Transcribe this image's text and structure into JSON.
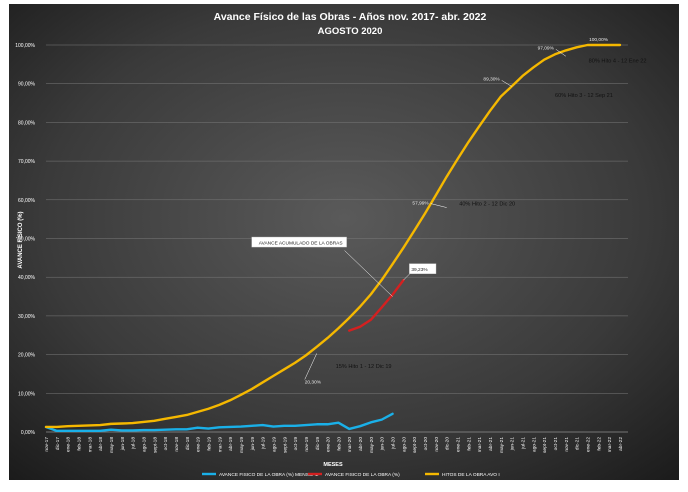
{
  "chart_data": {
    "type": "line",
    "title": "Avance Físico de las Obras - Años nov. 2017- abr. 2022",
    "subtitle": "AGOSTO 2020",
    "xlabel": "MESES",
    "ylabel": "AVANCE FÍSICO (%)",
    "ylim": [
      0,
      100
    ],
    "yticks": [
      "0,00%",
      "10,00%",
      "20,00%",
      "30,00%",
      "40,00%",
      "50,00%",
      "60,00%",
      "70,00%",
      "80,00%",
      "90,00%",
      "100,00%"
    ],
    "grid": true,
    "legend": "bottom",
    "categories": [
      "nov-17",
      "dic-17",
      "ene-18",
      "feb-18",
      "mar-18",
      "abr-18",
      "may-18",
      "jun-18",
      "jul-18",
      "ago-18",
      "sept-18",
      "oct-18",
      "nov-18",
      "dic-18",
      "ene-19",
      "feb-19",
      "mar-19",
      "abr-19",
      "may-19",
      "jun-19",
      "jul-19",
      "ago-19",
      "sept-19",
      "oct-19",
      "nov-19",
      "dic-19",
      "ene-20",
      "feb-20",
      "mar-20",
      "abr-20",
      "may-20",
      "jun-20",
      "jul-20",
      "ago-20",
      "sept-20",
      "oct-20",
      "nov-20",
      "dic-20",
      "ene-21",
      "feb-21",
      "mar-21",
      "abr-21",
      "may-21",
      "jun-21",
      "jul-21",
      "ago-21",
      "sept-21",
      "oct-21",
      "nov-21",
      "dic-21",
      "ene-22",
      "feb-22",
      "mar-22",
      "abr-22"
    ],
    "series": [
      {
        "name": "AVANCE FISICO DE LA OBRA (%) MENSUAL",
        "color": "#1ab0e8",
        "values": [
          1.3,
          0.3,
          0.3,
          0.3,
          0.3,
          0.3,
          0.6,
          0.4,
          0.4,
          0.5,
          0.5,
          0.6,
          0.7,
          0.7,
          1.1,
          0.9,
          1.2,
          1.3,
          1.4,
          1.6,
          1.8,
          1.4,
          1.6,
          1.6,
          1.8,
          2.0,
          2.0,
          2.4,
          0.8,
          1.5,
          2.5,
          3.2,
          4.7,
          null,
          null,
          null,
          null,
          null,
          null,
          null,
          null,
          null,
          null,
          null,
          null,
          null,
          null,
          null,
          null,
          null,
          null,
          null,
          null,
          null
        ]
      },
      {
        "name": "AVANCE FISICO DE LA OBRA (%)",
        "color": "#d42020",
        "values": [
          null,
          null,
          null,
          null,
          null,
          null,
          null,
          null,
          null,
          null,
          null,
          null,
          null,
          null,
          null,
          null,
          null,
          null,
          null,
          null,
          null,
          null,
          null,
          null,
          null,
          null,
          null,
          null,
          26.2,
          27.2,
          29.0,
          32.2,
          35.5,
          39.23,
          null,
          null,
          null,
          null,
          null,
          null,
          null,
          null,
          null,
          null,
          null,
          null,
          null,
          null,
          null,
          null,
          null,
          null,
          null,
          null
        ]
      },
      {
        "name": "HITOS DE LA OBRA AVO I",
        "color": "#f5b800",
        "values": [
          1.3,
          1.3,
          1.5,
          1.6,
          1.7,
          1.8,
          2.1,
          2.2,
          2.3,
          2.6,
          2.9,
          3.4,
          3.9,
          4.4,
          5.2,
          6.0,
          7.0,
          8.2,
          9.6,
          11.1,
          12.8,
          14.5,
          16.2,
          17.9,
          19.8,
          22.0,
          24.3,
          26.8,
          29.5,
          32.4,
          35.6,
          39.3,
          43.4,
          47.6,
          52.0,
          56.5,
          61.2,
          66.0,
          70.5,
          74.9,
          79.0,
          83.0,
          86.7,
          89.3,
          92.0,
          94.2,
          96.2,
          97.6,
          98.6,
          99.4,
          100.0,
          100.0,
          100.0,
          100.0
        ]
      }
    ],
    "annotations": [
      {
        "text": "AVANCE ACUMULADO DE LA OBRAS",
        "target_index": 32,
        "target_value": 35.0
      },
      {
        "text": "39,23%",
        "target_index": 33,
        "target_value": 39.23
      },
      {
        "text": "20,30%",
        "target_index": 25,
        "target_value": 20.3
      },
      {
        "text": "57,99%",
        "target_index": 37,
        "target_value": 57.99
      },
      {
        "text": "89,30%",
        "target_index": 43,
        "target_value": 89.3
      },
      {
        "text": "97,09%",
        "target_index": 48,
        "target_value": 97.09
      },
      {
        "text": "100,00%",
        "target_index": 53,
        "target_value": 100.0
      }
    ],
    "milestones": [
      {
        "text": "15% Hito 1 - 12 Dic 19",
        "index": 26,
        "value": 16.5
      },
      {
        "text": "40% Hito 2 - 12 Dic 20",
        "index": 40,
        "value": 58.5
      },
      {
        "text": "60% Hito 3 - 12 Sep 21",
        "index": 47,
        "value": 86.5
      },
      {
        "text": "80% Hito 4 - 12 Ene 22",
        "index": 49,
        "value": 95.5
      }
    ]
  }
}
